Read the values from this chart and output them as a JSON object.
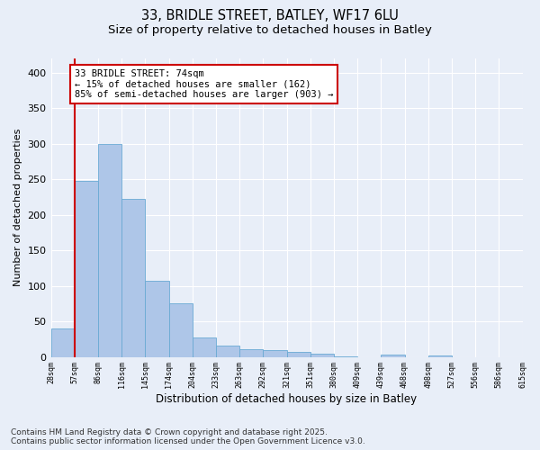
{
  "title_line1": "33, BRIDLE STREET, BATLEY, WF17 6LU",
  "title_line2": "Size of property relative to detached houses in Batley",
  "xlabel": "Distribution of detached houses by size in Batley",
  "ylabel": "Number of detached properties",
  "bar_values": [
    40,
    248,
    300,
    223,
    107,
    75,
    27,
    16,
    11,
    10,
    7,
    4,
    1,
    0,
    3,
    0,
    2,
    0,
    0,
    0
  ],
  "bin_labels": [
    "28sqm",
    "57sqm",
    "86sqm",
    "116sqm",
    "145sqm",
    "174sqm",
    "204sqm",
    "233sqm",
    "263sqm",
    "292sqm",
    "321sqm",
    "351sqm",
    "380sqm",
    "409sqm",
    "439sqm",
    "468sqm",
    "498sqm",
    "527sqm",
    "556sqm",
    "586sqm",
    "615sqm"
  ],
  "bar_color": "#aec6e8",
  "bar_edge_color": "#6aaad4",
  "background_color": "#e8eef8",
  "grid_color": "#ffffff",
  "annotation_text": "33 BRIDLE STREET: 74sqm\n← 15% of detached houses are smaller (162)\n85% of semi-detached houses are larger (903) →",
  "annotation_box_color": "#ffffff",
  "annotation_box_edge_color": "#cc0000",
  "vline_color": "#cc0000",
  "vline_x": 0.5,
  "ylim": [
    0,
    420
  ],
  "yticks": [
    0,
    50,
    100,
    150,
    200,
    250,
    300,
    350,
    400
  ],
  "footer_text": "Contains HM Land Registry data © Crown copyright and database right 2025.\nContains public sector information licensed under the Open Government Licence v3.0.",
  "title_fontsize": 10.5,
  "subtitle_fontsize": 9.5,
  "annotation_fontsize": 7.5,
  "footer_fontsize": 6.5,
  "ylabel_fontsize": 8,
  "xlabel_fontsize": 8.5
}
